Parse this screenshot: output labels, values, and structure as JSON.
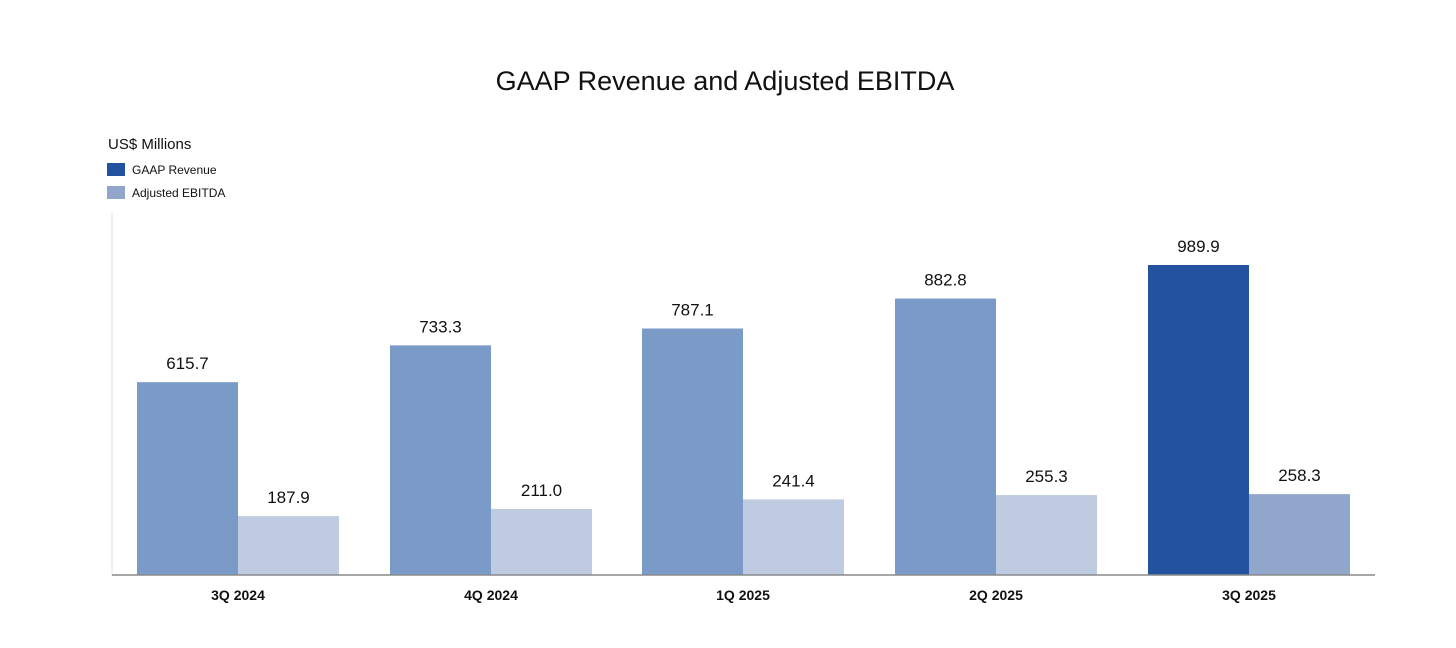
{
  "chart_data": {
    "type": "bar",
    "title": "GAAP Revenue and Adjusted EBITDA",
    "ylabel": "US$ Millions",
    "xlabel": "",
    "ylim": [
      0,
      1050
    ],
    "grid": false,
    "legend_position": "top-left",
    "categories": [
      "3Q 2024",
      "4Q 2024",
      "1Q 2025",
      "2Q 2025",
      "3Q 2025"
    ],
    "series": [
      {
        "name": "GAAP Revenue",
        "legend_color": "#2352A0",
        "values": [
          615.7,
          733.3,
          787.1,
          882.8,
          989.9
        ],
        "labels": [
          "615.7",
          "733.3",
          "787.1",
          "882.8",
          "989.9"
        ],
        "colors": [
          "#7A9AC8",
          "#7A9AC8",
          "#7A9AC8",
          "#7A9AC8",
          "#2352A0"
        ]
      },
      {
        "name": "Adjusted EBITDA",
        "legend_color": "#90A7CB",
        "values": [
          187.9,
          211.0,
          241.4,
          255.3,
          258.3
        ],
        "labels": [
          "187.9",
          "211.0",
          "241.4",
          "255.3",
          "258.3"
        ],
        "colors": [
          "#BECBE0",
          "#BECBE0",
          "#BECBE0",
          "#BECBE0",
          "#90A7CB"
        ]
      }
    ]
  }
}
